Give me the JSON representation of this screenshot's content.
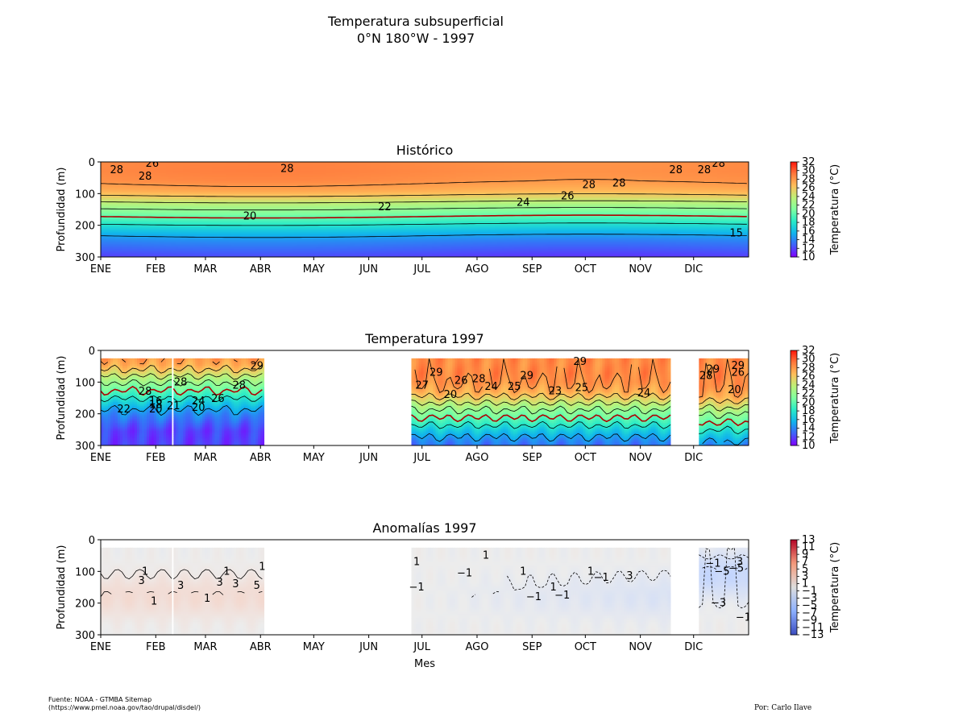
{
  "figure": {
    "title": "Temperatura subsuperficial",
    "subtitle": "0°N 180°W - 1997",
    "xlabel": "Mes",
    "source_line1": "Fuente: NOAA - GTMBA Sitemap",
    "source_line2": "(https://www.pmel.noaa.gov/tao/drupal/disdel/)",
    "credit": "Por: Carlo Ilave"
  },
  "chart_data": [
    {
      "type": "heatmap",
      "title": "Histórico",
      "ylabel": "Profundidad (m)",
      "x_tick_labels": [
        "ENE",
        "FEB",
        "MAR",
        "ABR",
        "MAY",
        "JUN",
        "JUL",
        "AGO",
        "SEP",
        "OCT",
        "NOV",
        "DIC"
      ],
      "y_ticks": [
        0,
        100,
        200,
        300
      ],
      "ylim": [
        300,
        0
      ],
      "colorbar": {
        "label": "Temperatura (°C)",
        "ticks": [
          10,
          12,
          14,
          16,
          18,
          20,
          22,
          24,
          26,
          28,
          30,
          32
        ],
        "range": [
          10,
          32
        ],
        "colormap": "rainbow"
      },
      "data_windows": [
        [
          0,
          365
        ]
      ],
      "profile": {
        "depth": [
          0,
          30,
          60,
          90,
          110,
          130,
          150,
          170,
          190,
          210,
          230,
          250,
          275,
          300
        ],
        "temp": [
          28.5,
          28.6,
          28.3,
          27.2,
          25.6,
          23.6,
          21.8,
          20.2,
          18.6,
          16.8,
          15.2,
          13.9,
          12.8,
          11.8
        ]
      },
      "contour_labels": [
        {
          "text": "28",
          "day": 9,
          "depth": 25
        },
        {
          "text": "28",
          "day": 25,
          "depth": 46
        },
        {
          "text": "26",
          "day": 29,
          "depth": 5
        },
        {
          "text": "28",
          "day": 105,
          "depth": 22
        },
        {
          "text": "22",
          "day": 160,
          "depth": 143
        },
        {
          "text": "20",
          "day": 84,
          "depth": 172
        },
        {
          "text": "24",
          "day": 238,
          "depth": 128
        },
        {
          "text": "26",
          "day": 263,
          "depth": 108
        },
        {
          "text": "28",
          "day": 275,
          "depth": 72
        },
        {
          "text": "28",
          "day": 292,
          "depth": 68
        },
        {
          "text": "28",
          "day": 324,
          "depth": 25
        },
        {
          "text": "28",
          "day": 340,
          "depth": 25
        },
        {
          "text": "28",
          "day": 348,
          "depth": 5
        },
        {
          "text": "15",
          "day": 358,
          "depth": 225
        }
      ]
    },
    {
      "type": "heatmap",
      "title": "Temperatura 1997",
      "ylabel": "Profundidad (m)",
      "x_tick_labels": [
        "ENE",
        "FEB",
        "MAR",
        "ABR",
        "MAY",
        "JUN",
        "JUL",
        "AGO",
        "SEP",
        "OCT",
        "NOV",
        "DIC"
      ],
      "y_ticks": [
        0,
        100,
        200,
        300
      ],
      "ylim": [
        300,
        0
      ],
      "colorbar": {
        "label": "Temperatura (°C)",
        "ticks": [
          10,
          12,
          14,
          16,
          18,
          20,
          22,
          24,
          26,
          28,
          30,
          32
        ],
        "range": [
          10,
          32
        ],
        "colormap": "rainbow"
      },
      "data_windows": [
        [
          0,
          40
        ],
        [
          41,
          92
        ],
        [
          175,
          321
        ],
        [
          337,
          365
        ]
      ],
      "top_depth": 25,
      "contour_labels": [
        {
          "text": "28",
          "day": 25,
          "depth": 130
        },
        {
          "text": "16",
          "day": 31,
          "depth": 160
        },
        {
          "text": "18",
          "day": 31,
          "depth": 172
        },
        {
          "text": "20",
          "day": 31,
          "depth": 185
        },
        {
          "text": "22",
          "day": 13,
          "depth": 185
        },
        {
          "text": "21",
          "day": 41,
          "depth": 175
        },
        {
          "text": "24",
          "day": 55,
          "depth": 160
        },
        {
          "text": "20",
          "day": 55,
          "depth": 180
        },
        {
          "text": "26",
          "day": 66,
          "depth": 152
        },
        {
          "text": "28",
          "day": 45,
          "depth": 100
        },
        {
          "text": "28",
          "day": 78,
          "depth": 110
        },
        {
          "text": "29",
          "day": 88,
          "depth": 50
        },
        {
          "text": "29",
          "day": 189,
          "depth": 70
        },
        {
          "text": "26",
          "day": 203,
          "depth": 95
        },
        {
          "text": "28",
          "day": 213,
          "depth": 90
        },
        {
          "text": "27",
          "day": 181,
          "depth": 110
        },
        {
          "text": "20",
          "day": 197,
          "depth": 140
        },
        {
          "text": "24",
          "day": 220,
          "depth": 115
        },
        {
          "text": "25",
          "day": 233,
          "depth": 115
        },
        {
          "text": "29",
          "day": 240,
          "depth": 80
        },
        {
          "text": "29",
          "day": 270,
          "depth": 35
        },
        {
          "text": "23",
          "day": 256,
          "depth": 128
        },
        {
          "text": "25",
          "day": 271,
          "depth": 118
        },
        {
          "text": "24",
          "day": 306,
          "depth": 135
        },
        {
          "text": "29",
          "day": 345,
          "depth": 60
        },
        {
          "text": "28",
          "day": 341,
          "depth": 80
        },
        {
          "text": "29",
          "day": 359,
          "depth": 48
        },
        {
          "text": "26",
          "day": 359,
          "depth": 70
        },
        {
          "text": "20",
          "day": 357,
          "depth": 125
        }
      ]
    },
    {
      "type": "heatmap",
      "title": "Anomalías 1997",
      "ylabel": "Profundidad (m)",
      "x_tick_labels": [
        "ENE",
        "FEB",
        "MAR",
        "ABR",
        "MAY",
        "JUN",
        "JUL",
        "AGO",
        "SEP",
        "OCT",
        "NOV",
        "DIC"
      ],
      "y_ticks": [
        0,
        100,
        200,
        300
      ],
      "ylim": [
        300,
        0
      ],
      "colorbar": {
        "label": "Temperatura (°C)",
        "ticks": [
          13,
          11,
          9,
          7,
          5,
          3,
          1,
          -1,
          -3,
          -5,
          -7,
          -9,
          -11,
          -13
        ],
        "range": [
          -13,
          13
        ],
        "colormap": "coolwarm"
      },
      "data_windows": [
        [
          0,
          40
        ],
        [
          41,
          92
        ],
        [
          175,
          321
        ],
        [
          337,
          365
        ]
      ],
      "top_depth": 25,
      "contour_labels": [
        {
          "text": "1",
          "day": 25,
          "depth": 100
        },
        {
          "text": "3",
          "day": 23,
          "depth": 130
        },
        {
          "text": "1",
          "day": 30,
          "depth": 195
        },
        {
          "text": "3",
          "day": 45,
          "depth": 145
        },
        {
          "text": "1",
          "day": 60,
          "depth": 185
        },
        {
          "text": "1",
          "day": 71,
          "depth": 100
        },
        {
          "text": "3",
          "day": 67,
          "depth": 135
        },
        {
          "text": "3",
          "day": 76,
          "depth": 140
        },
        {
          "text": "5",
          "day": 88,
          "depth": 145
        },
        {
          "text": "1",
          "day": 91,
          "depth": 85
        },
        {
          "text": "−1",
          "day": 178,
          "depth": 150
        },
        {
          "text": "1",
          "day": 178,
          "depth": 70
        },
        {
          "text": "1",
          "day": 217,
          "depth": 50
        },
        {
          "text": "−1",
          "day": 205,
          "depth": 105
        },
        {
          "text": "1",
          "day": 238,
          "depth": 100
        },
        {
          "text": "−1",
          "day": 244,
          "depth": 180
        },
        {
          "text": "1",
          "day": 255,
          "depth": 150
        },
        {
          "text": "−1",
          "day": 260,
          "depth": 175
        },
        {
          "text": "1",
          "day": 276,
          "depth": 100
        },
        {
          "text": "−1",
          "day": 282,
          "depth": 120
        },
        {
          "text": "3",
          "day": 298,
          "depth": 115
        },
        {
          "text": "−1",
          "day": 345,
          "depth": 75
        },
        {
          "text": "−5",
          "day": 350,
          "depth": 100
        },
        {
          "text": "3",
          "day": 360,
          "depth": 70
        },
        {
          "text": "−5",
          "day": 358,
          "depth": 90
        },
        {
          "text": "−3",
          "day": 348,
          "depth": 200
        },
        {
          "text": "−1",
          "day": 362,
          "depth": 245
        }
      ]
    }
  ]
}
